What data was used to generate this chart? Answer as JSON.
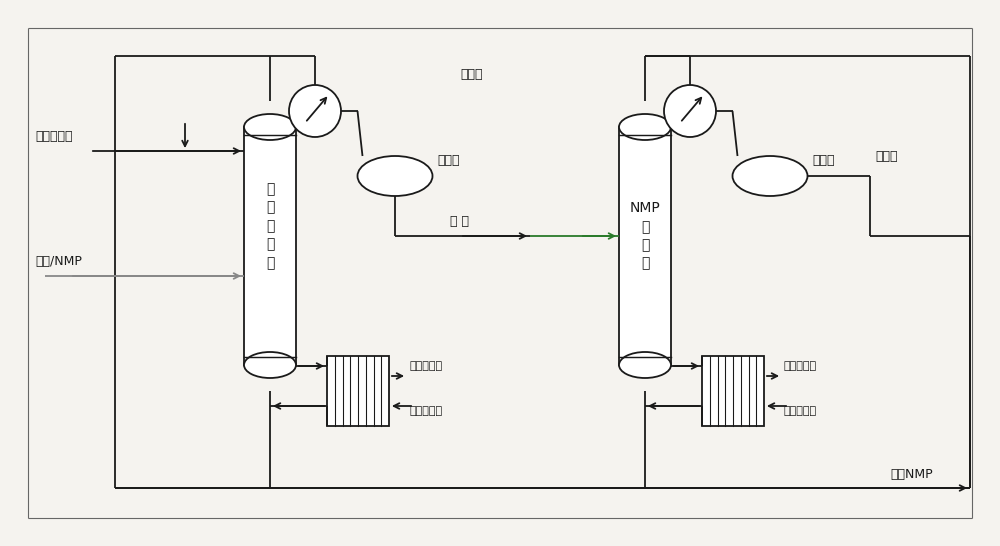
{
  "bg_color": "#f5f3ef",
  "line_color": "#1a1a1a",
  "line_color_gray": "#888888",
  "green_line": "#2a7a2a",
  "fig_width": 10.0,
  "fig_height": 5.46,
  "labels": {
    "tower1_text": "共\n沸\n精\n馏\n塔",
    "tower2_text": "NMP\n精\n制\n塔",
    "fresh_agent": "新鲜共沸剂",
    "feed": "氯仿/NMP",
    "azeotrope1": "共沸剂",
    "azeotrope2": "共沸剂",
    "chloroform": "氯 仿",
    "purified_nmp": "精制NMP",
    "lp_out1": "低压蒸汽出",
    "lp_in1": "低压蒸汽进",
    "lp_out2": "低压蒸汽出",
    "lp_in2": "低压蒸汽进"
  }
}
